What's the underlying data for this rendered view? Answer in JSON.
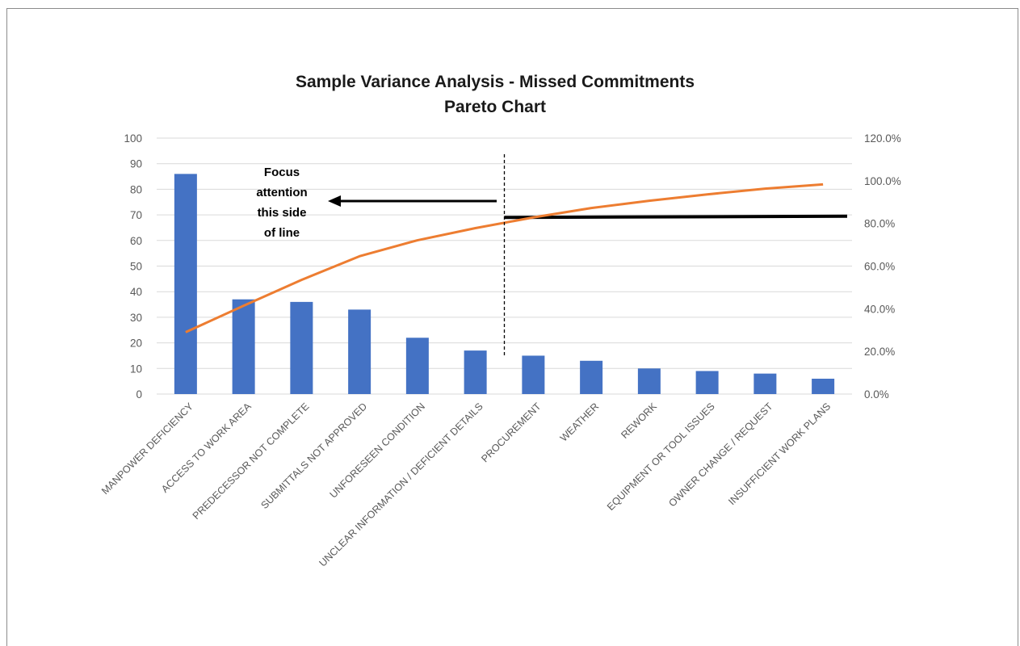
{
  "chart_data": {
    "type": "bar",
    "title": "Sample Variance Analysis - Missed Commitments",
    "subtitle": "Pareto Chart",
    "categories": [
      "MANPOWER DEFICIENCY",
      "ACCESS TO WORK AREA",
      "PREDECESSOR NOT COMPLETE",
      "SUBMITTALS NOT APPROVED",
      "UNFORESEEN CONDITION",
      "UNCLEAR INFORMATION / DEFICIENT DETAILS",
      "PROCUREMENT",
      "WEATHER",
      "REWORK",
      "EQUIPMENT OR TOOL ISSUES",
      "OWNER CHANGE / REQUEST",
      "INSUFFICIENT WORK PLANS"
    ],
    "values": [
      86,
      37,
      36,
      33,
      22,
      17,
      15,
      13,
      10,
      9,
      8,
      6
    ],
    "cumulative_percent": [
      29.0,
      41.4,
      53.5,
      64.6,
      72.1,
      77.8,
      82.8,
      87.2,
      90.6,
      93.6,
      96.3,
      98.3
    ],
    "ylim": [
      0,
      100
    ],
    "yticks": [
      "0",
      "10",
      "20",
      "30",
      "40",
      "50",
      "60",
      "70",
      "80",
      "90",
      "100"
    ],
    "y2lim": [
      0,
      120
    ],
    "y2ticks": [
      "0.0%",
      "20.0%",
      "40.0%",
      "60.0%",
      "80.0%",
      "100.0%",
      "120.0%"
    ],
    "threshold_percent": 83,
    "divider_after_category": "UNCLEAR INFORMATION / DEFICIENT DETAILS",
    "annotation": [
      "Focus",
      "attention",
      "this side",
      "of line"
    ],
    "grid": true,
    "bar_color": "#4472C4",
    "line_color": "#ED7D31",
    "threshold_color": "#000000"
  }
}
